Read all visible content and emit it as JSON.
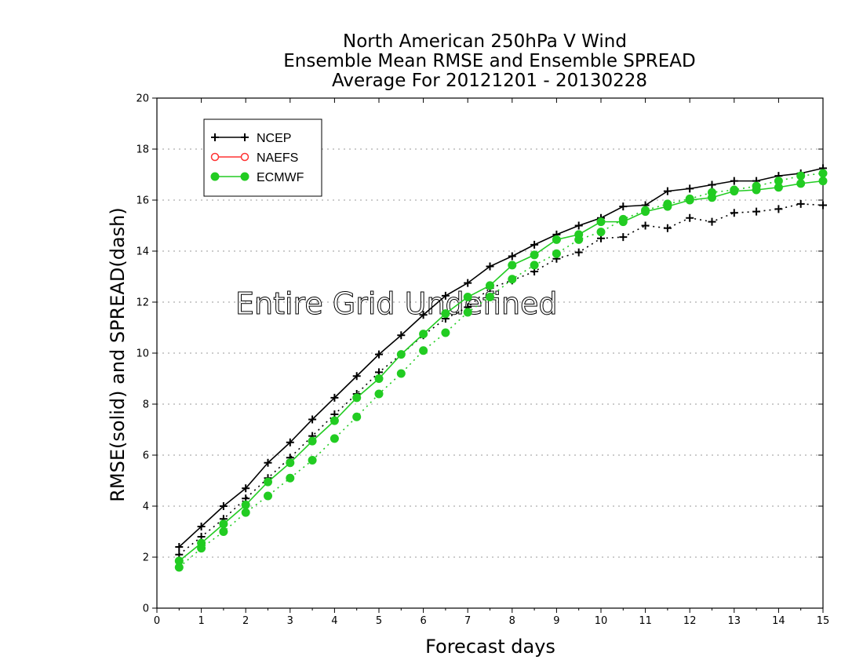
{
  "chart_data": {
    "type": "line",
    "title": [
      "North American 250hPa V Wind",
      "Ensemble Mean RMSE and Ensemble SPREAD",
      "Average For 20121201 - 20130228"
    ],
    "xlabel": "Forecast days",
    "ylabel": "RMSE(solid) and SPREAD(dash)",
    "xlim": [
      0,
      15
    ],
    "ylim": [
      0,
      20
    ],
    "xticks": [
      0,
      1,
      2,
      3,
      4,
      5,
      6,
      7,
      8,
      9,
      10,
      11,
      12,
      13,
      14,
      15
    ],
    "yticks": [
      0,
      2,
      4,
      6,
      8,
      10,
      12,
      14,
      16,
      18,
      20
    ],
    "grid": "horizontal dotted",
    "legend_position": "top-left",
    "annotation": "Entire Grid Undefined",
    "x": [
      0.5,
      1,
      1.5,
      2,
      2.5,
      3,
      3.5,
      4,
      4.5,
      5,
      5.5,
      6,
      6.5,
      7,
      7.5,
      8,
      8.5,
      9,
      9.5,
      10,
      10.5,
      11,
      11.5,
      12,
      12.5,
      13,
      13.5,
      14,
      14.5,
      15
    ],
    "legend": [
      {
        "name": "NCEP",
        "color": "#000000",
        "marker": "plus"
      },
      {
        "name": "NAEFS",
        "color": "#ff3333",
        "marker": "open-circle"
      },
      {
        "name": "ECMWF",
        "color": "#22cc22",
        "marker": "filled-circle"
      }
    ],
    "series": [
      {
        "name": "NCEP",
        "style": "solid",
        "color": "#000000",
        "marker": "plus",
        "values": [
          2.4,
          3.2,
          4.0,
          4.7,
          5.7,
          6.5,
          7.4,
          8.25,
          9.1,
          9.95,
          10.7,
          11.5,
          12.25,
          12.75,
          13.4,
          13.8,
          14.25,
          14.65,
          15.0,
          15.3,
          15.75,
          15.8,
          16.35,
          16.45,
          16.6,
          16.75,
          16.75,
          16.95,
          17.05,
          17.25
        ]
      },
      {
        "name": "NCEP",
        "style": "dash",
        "color": "#000000",
        "marker": "plus",
        "values": [
          2.1,
          2.8,
          3.5,
          4.3,
          5.1,
          5.9,
          6.75,
          7.6,
          8.4,
          9.25,
          9.95,
          10.7,
          11.35,
          11.8,
          12.55,
          12.85,
          13.2,
          13.7,
          13.95,
          14.5,
          14.55,
          15.0,
          14.9,
          15.3,
          15.15,
          15.5,
          15.55,
          15.65,
          15.85,
          15.8
        ]
      },
      {
        "name": "ECMWF",
        "style": "solid",
        "color": "#22cc22",
        "marker": "filled-circle",
        "values": [
          1.85,
          2.55,
          3.3,
          4.05,
          4.95,
          5.7,
          6.55,
          7.35,
          8.25,
          9.0,
          9.95,
          10.75,
          11.55,
          12.2,
          12.65,
          13.45,
          13.85,
          14.45,
          14.65,
          15.15,
          15.15,
          15.55,
          15.75,
          16.0,
          16.1,
          16.35,
          16.4,
          16.5,
          16.65,
          16.75
        ]
      },
      {
        "name": "ECMWF",
        "style": "dash",
        "color": "#22cc22",
        "marker": "filled-circle",
        "values": [
          1.6,
          2.35,
          3.0,
          3.75,
          4.4,
          5.1,
          5.8,
          6.65,
          7.5,
          8.4,
          9.2,
          10.1,
          10.8,
          11.6,
          12.2,
          12.9,
          13.45,
          13.9,
          14.45,
          14.75,
          15.25,
          15.6,
          15.85,
          16.05,
          16.3,
          16.4,
          16.55,
          16.75,
          16.95,
          17.05
        ]
      }
    ]
  }
}
